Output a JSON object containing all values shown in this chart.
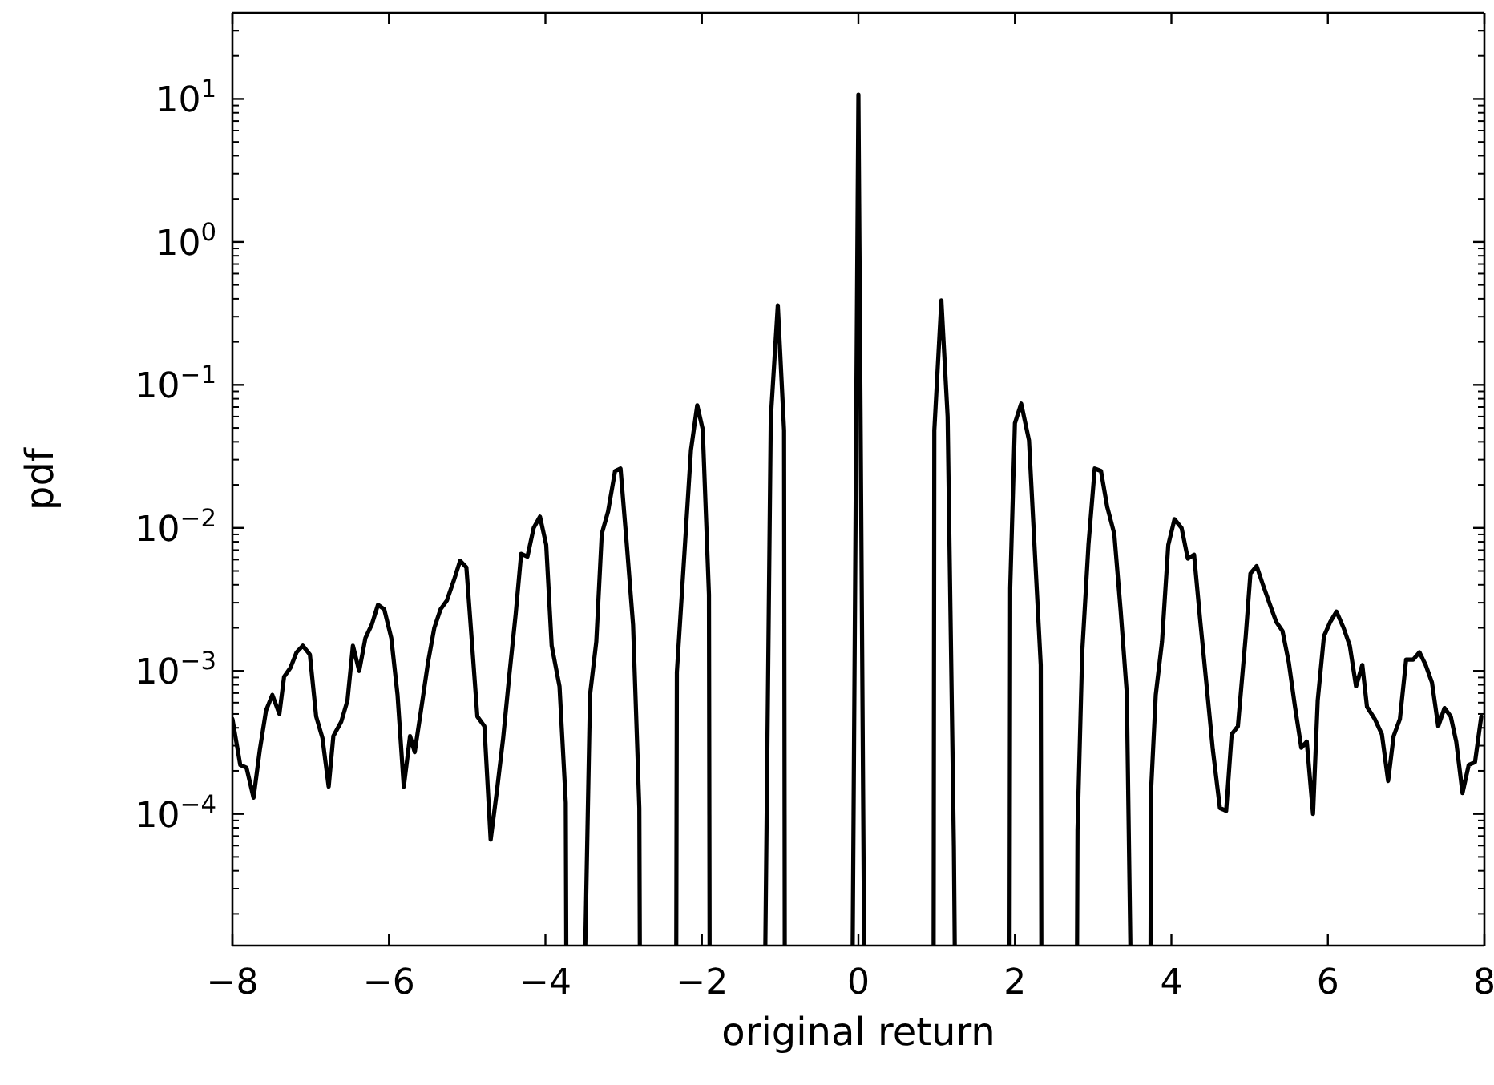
{
  "chart_data": {
    "type": "line",
    "xlabel": "original return",
    "ylabel": "pdf",
    "log": "y",
    "grid": false,
    "marker": "none",
    "line_style": "solid",
    "xlim": [
      -8,
      8
    ],
    "xticks": [
      {
        "value": -8,
        "label": "−8"
      },
      {
        "value": -6,
        "label": "−6"
      },
      {
        "value": -4,
        "label": "−4"
      },
      {
        "value": -2,
        "label": "−2"
      },
      0,
      2,
      4,
      6,
      8
    ],
    "ylim": [
      1.2e-05,
      40
    ],
    "yticks": [
      {
        "value": 0.0001,
        "label": "10$^{−4}$"
      },
      {
        "value": 0.001,
        "label": "10$^{−3}$"
      },
      {
        "value": 0.01,
        "label": "10$^{−2}$"
      },
      {
        "value": 0.1,
        "label": "10$^{−1}$"
      },
      {
        "value": 1,
        "label": "10$^{0}$"
      },
      {
        "value": 10,
        "label": "10$^{1}$"
      }
    ],
    "series": [
      {
        "color": "#000000",
        "x": [
          -8.0,
          -7.9,
          -7.82,
          -7.73,
          -7.65,
          -7.57,
          -7.49,
          -7.4,
          -7.34,
          -7.26,
          -7.18,
          -7.1,
          -7.01,
          -6.93,
          -6.85,
          -6.77,
          -6.71,
          -6.61,
          -6.53,
          -6.46,
          -6.38,
          -6.3,
          -6.22,
          -6.14,
          -6.06,
          -5.97,
          -5.89,
          -5.81,
          -5.73,
          -5.67,
          -5.59,
          -5.5,
          -5.42,
          -5.34,
          -5.26,
          -5.17,
          -5.09,
          -5.01,
          -4.95,
          -4.87,
          -4.78,
          -4.7,
          -4.62,
          -4.54,
          -4.46,
          -4.38,
          -4.31,
          -4.23,
          -4.15,
          -4.07,
          -3.99,
          -3.92,
          -3.82,
          -3.74,
          -3.73,
          -3.51,
          -3.43,
          -3.35,
          -3.28,
          -3.2,
          -3.11,
          -3.04,
          -2.96,
          -2.88,
          -2.8,
          -2.79,
          -2.33,
          -2.32,
          -2.14,
          -2.06,
          -1.99,
          -1.91,
          -1.9,
          -1.2,
          -1.12,
          -1.03,
          -0.95,
          -0.94,
          -0.08,
          0,
          0.08,
          0.96,
          0.97,
          1.06,
          1.14,
          1.22,
          1.24,
          1.93,
          1.94,
          2.0,
          2.08,
          2.18,
          2.33,
          2.34,
          2.79,
          2.8,
          2.86,
          2.94,
          3.02,
          3.1,
          3.18,
          3.27,
          3.35,
          3.43,
          3.49,
          3.73,
          3.74,
          3.8,
          3.88,
          3.96,
          4.04,
          4.13,
          4.21,
          4.29,
          4.37,
          4.45,
          4.53,
          4.62,
          4.7,
          4.77,
          4.85,
          4.95,
          5.01,
          5.09,
          5.17,
          5.26,
          5.34,
          5.42,
          5.5,
          5.58,
          5.66,
          5.73,
          5.81,
          5.87,
          5.95,
          6.03,
          6.11,
          6.2,
          6.28,
          6.36,
          6.44,
          6.5,
          6.6,
          6.69,
          6.77,
          6.84,
          6.92,
          7.0,
          7.09,
          7.17,
          7.25,
          7.33,
          7.41,
          7.49,
          7.57,
          7.64,
          7.72,
          7.8,
          7.88,
          7.96
        ],
        "values": [
          0.00046,
          0.00022,
          0.00021,
          0.00013,
          0.00028,
          0.00053,
          0.00068,
          0.0005,
          0.00091,
          0.00105,
          0.00135,
          0.0015,
          0.0013,
          0.00048,
          0.00034,
          0.000155,
          0.00035,
          0.00044,
          0.00062,
          0.0015,
          0.001,
          0.0017,
          0.0021,
          0.0029,
          0.0027,
          0.0017,
          0.00068,
          0.000155,
          0.00035,
          0.00027,
          0.00053,
          0.00115,
          0.002,
          0.0027,
          0.0031,
          0.0043,
          0.0059,
          0.0053,
          0.0019,
          0.00048,
          0.00041,
          6.6e-05,
          0.000145,
          0.00034,
          0.00095,
          0.0025,
          0.0066,
          0.0063,
          0.01,
          0.012,
          0.0076,
          0.0015,
          0.00078,
          0.00012,
          null,
          null,
          0.00068,
          0.0016,
          0.0091,
          0.013,
          0.025,
          0.026,
          0.0076,
          0.0021,
          0.00011,
          null,
          null,
          0.00098,
          0.035,
          0.072,
          0.049,
          0.0034,
          null,
          null,
          0.058,
          0.36,
          0.048,
          null,
          null,
          10.7,
          null,
          null,
          0.048,
          0.39,
          0.06,
          5.9e-05,
          null,
          null,
          0.0038,
          0.054,
          0.074,
          0.041,
          0.0011,
          null,
          null,
          7.7e-05,
          0.00135,
          0.0076,
          0.026,
          0.025,
          0.014,
          0.0091,
          0.0027,
          0.0007,
          null,
          null,
          0.000145,
          0.00068,
          0.0016,
          0.0076,
          0.0115,
          0.01,
          0.0061,
          0.0065,
          0.0022,
          0.00079,
          0.00028,
          0.00011,
          0.000105,
          0.00036,
          0.00041,
          0.00175,
          0.0048,
          0.0054,
          0.004,
          0.0029,
          0.0022,
          0.0019,
          0.00115,
          0.00056,
          0.00029,
          0.00032,
          0.0001,
          0.00062,
          0.00175,
          0.0022,
          0.0026,
          0.002,
          0.0015,
          0.00078,
          0.0011,
          0.00056,
          0.00046,
          0.00036,
          0.00017,
          0.00035,
          0.00046,
          0.0012,
          0.0012,
          0.00135,
          0.0011,
          0.00083,
          0.00041,
          0.00055,
          0.00048,
          0.00032,
          0.00014,
          0.00022,
          0.00023,
          0.00048
        ]
      }
    ]
  }
}
